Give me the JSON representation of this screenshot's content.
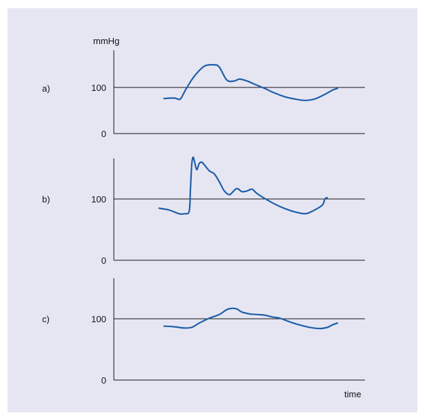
{
  "chart_data": [
    {
      "type": "line",
      "panel_label": "a)",
      "ylabel": "mmHg",
      "yticks": [
        0,
        100
      ],
      "ylim": [
        0,
        175
      ],
      "xlim": [
        0,
        100
      ],
      "series": [
        {
          "color": "#1f5fa8",
          "x": [
            20,
            24,
            26,
            27,
            29,
            32,
            36,
            40,
            42,
            45,
            48,
            50,
            53,
            56,
            60,
            64,
            68,
            72,
            76,
            80,
            84,
            87,
            89
          ],
          "y": [
            76,
            77,
            74,
            79,
            99,
            124,
            146,
            149,
            144,
            116,
            114,
            118,
            114,
            107,
            98,
            88,
            80,
            75,
            72,
            75,
            85,
            94,
            98
          ]
        }
      ]
    },
    {
      "type": "line",
      "panel_label": "b)",
      "ylabel": "",
      "yticks": [
        0,
        100
      ],
      "ylim": [
        0,
        165
      ],
      "xlim": [
        0,
        100
      ],
      "series": [
        {
          "color": "#1f5fa8",
          "x": [
            18,
            22,
            26,
            28,
            30,
            30.5,
            31,
            31.5,
            32,
            33,
            34,
            35,
            36,
            38,
            40,
            42,
            44,
            46,
            47,
            49,
            51,
            53,
            55,
            57,
            60,
            63,
            66,
            69,
            72,
            76,
            79,
            83,
            84,
            85
          ],
          "y": [
            85,
            82,
            76,
            76,
            80,
            115,
            155,
            168,
            163,
            148,
            158,
            160,
            156,
            146,
            141,
            128,
            113,
            107,
            110,
            117,
            112,
            113,
            116,
            109,
            101,
            94,
            88,
            83,
            79,
            76,
            80,
            90,
            100,
            102
          ]
        }
      ]
    },
    {
      "type": "line",
      "panel_label": "c)",
      "ylabel": "",
      "yticks": [
        0,
        100
      ],
      "ylim": [
        0,
        175
      ],
      "xlim": [
        0,
        100
      ],
      "xlabel": "time",
      "series": [
        {
          "color": "#1f5fa8",
          "x": [
            20,
            24,
            28,
            31,
            34,
            38,
            42,
            45,
            47,
            49,
            51,
            54,
            57,
            60,
            63,
            66,
            70,
            74,
            78,
            82,
            85,
            87,
            89
          ],
          "y": [
            88,
            87,
            85,
            86,
            93,
            101,
            107,
            115,
            117,
            116,
            111,
            108,
            107,
            106,
            103,
            101,
            95,
            90,
            86,
            84,
            86,
            90,
            93
          ]
        }
      ]
    }
  ]
}
